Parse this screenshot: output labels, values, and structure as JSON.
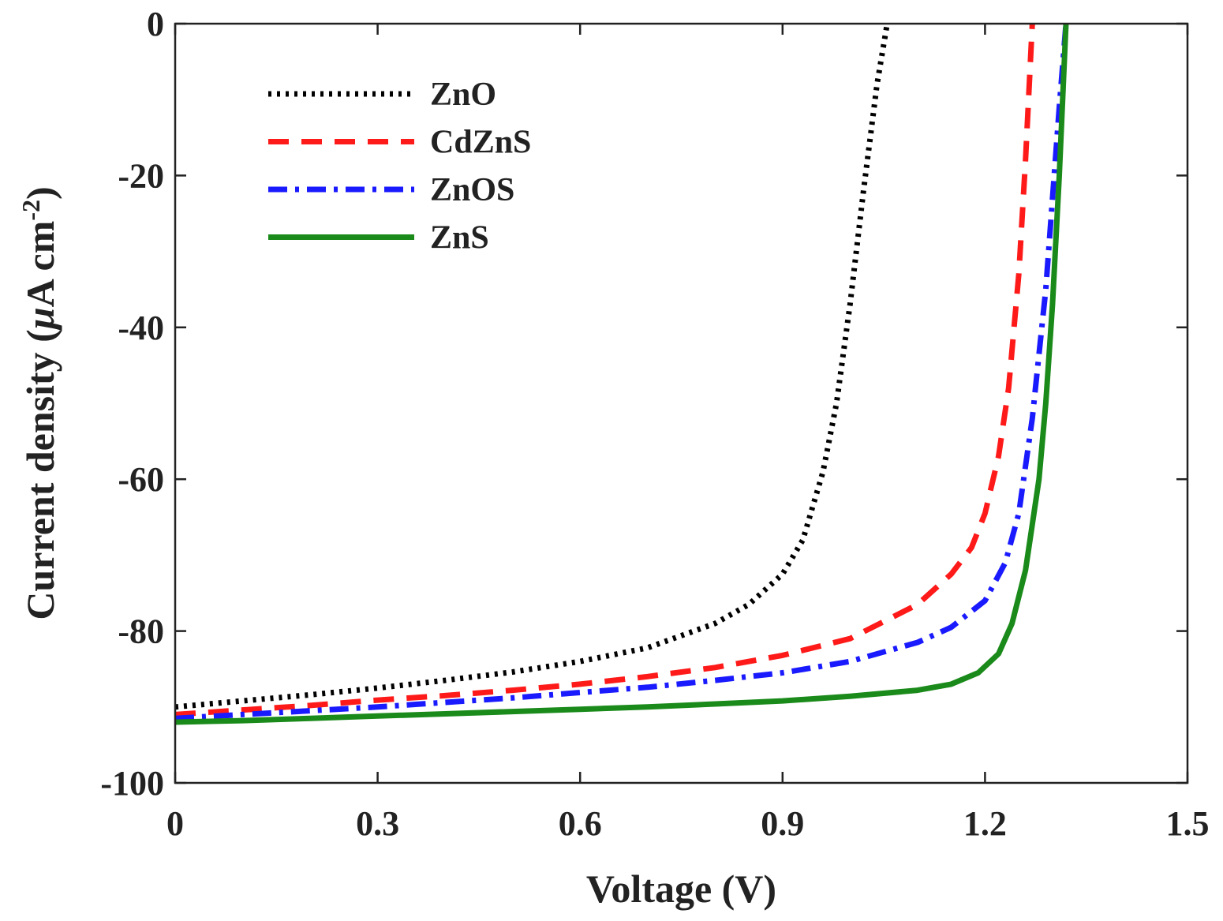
{
  "chart_data": {
    "type": "line",
    "xlabel": "Voltage (V)",
    "ylabel": {
      "main": "Current density (",
      "mu": "μ",
      "unit": "A cm",
      "exponent": "-2",
      "close": ")"
    },
    "xlim": [
      0,
      1.5
    ],
    "ylim": [
      -100,
      0
    ],
    "xticks": [
      0,
      0.3,
      0.6,
      0.9,
      1.2,
      1.5
    ],
    "xtick_labels": [
      "0",
      "0.3",
      "0.6",
      "0.9",
      "1.2",
      "1.5"
    ],
    "yticks": [
      0,
      -20,
      -40,
      -60,
      -80,
      -100
    ],
    "ytick_labels": [
      "0",
      "-20",
      "-40",
      "-60",
      "-80",
      "-100"
    ],
    "grid": false,
    "legend_position": "top-left",
    "series": [
      {
        "name": "ZnO",
        "color": "#000000",
        "style": "dotted",
        "x": [
          0,
          0.1,
          0.2,
          0.3,
          0.4,
          0.5,
          0.6,
          0.7,
          0.8,
          0.85,
          0.9,
          0.93,
          0.96,
          0.98,
          1.0,
          1.02,
          1.04,
          1.055
        ],
        "y": [
          -90.0,
          -89.2,
          -88.4,
          -87.5,
          -86.5,
          -85.4,
          -84.0,
          -82.2,
          -79.0,
          -76.5,
          -72.5,
          -68.0,
          -59.0,
          -50.0,
          -37.0,
          -22.0,
          -8.0,
          0
        ]
      },
      {
        "name": "CdZnS",
        "color": "#ff1a1a",
        "style": "dashed",
        "x": [
          0,
          0.1,
          0.2,
          0.3,
          0.4,
          0.5,
          0.6,
          0.7,
          0.8,
          0.9,
          1.0,
          1.1,
          1.15,
          1.18,
          1.2,
          1.22,
          1.235,
          1.25,
          1.26,
          1.27
        ],
        "y": [
          -91.0,
          -90.4,
          -89.8,
          -89.1,
          -88.5,
          -87.8,
          -87.0,
          -86.0,
          -84.8,
          -83.2,
          -81.0,
          -76.5,
          -72.5,
          -69.0,
          -64.5,
          -57.0,
          -48.0,
          -33.0,
          -18.0,
          0
        ]
      },
      {
        "name": "ZnOS",
        "color": "#1a1aff",
        "style": "dashdot",
        "x": [
          0,
          0.1,
          0.2,
          0.3,
          0.4,
          0.5,
          0.6,
          0.7,
          0.8,
          0.9,
          1.0,
          1.1,
          1.15,
          1.2,
          1.23,
          1.25,
          1.27,
          1.29,
          1.3,
          1.31,
          1.32
        ],
        "y": [
          -91.5,
          -91.0,
          -90.5,
          -90.0,
          -89.4,
          -88.8,
          -88.1,
          -87.4,
          -86.5,
          -85.5,
          -84.0,
          -81.5,
          -79.5,
          -76.0,
          -71.0,
          -64.5,
          -52.0,
          -35.0,
          -23.0,
          -11.0,
          0
        ]
      },
      {
        "name": "ZnS",
        "color": "#1a8a1a",
        "style": "solid",
        "x": [
          0,
          0.1,
          0.2,
          0.3,
          0.4,
          0.5,
          0.6,
          0.7,
          0.8,
          0.9,
          1.0,
          1.1,
          1.15,
          1.19,
          1.22,
          1.24,
          1.26,
          1.28,
          1.29,
          1.3,
          1.31,
          1.32
        ],
        "y": [
          -92.0,
          -91.8,
          -91.5,
          -91.2,
          -90.9,
          -90.6,
          -90.3,
          -90.0,
          -89.6,
          -89.2,
          -88.6,
          -87.8,
          -87.0,
          -85.5,
          -83.0,
          -79.0,
          -72.0,
          -60.0,
          -50.0,
          -37.0,
          -20.0,
          0
        ]
      }
    ]
  }
}
